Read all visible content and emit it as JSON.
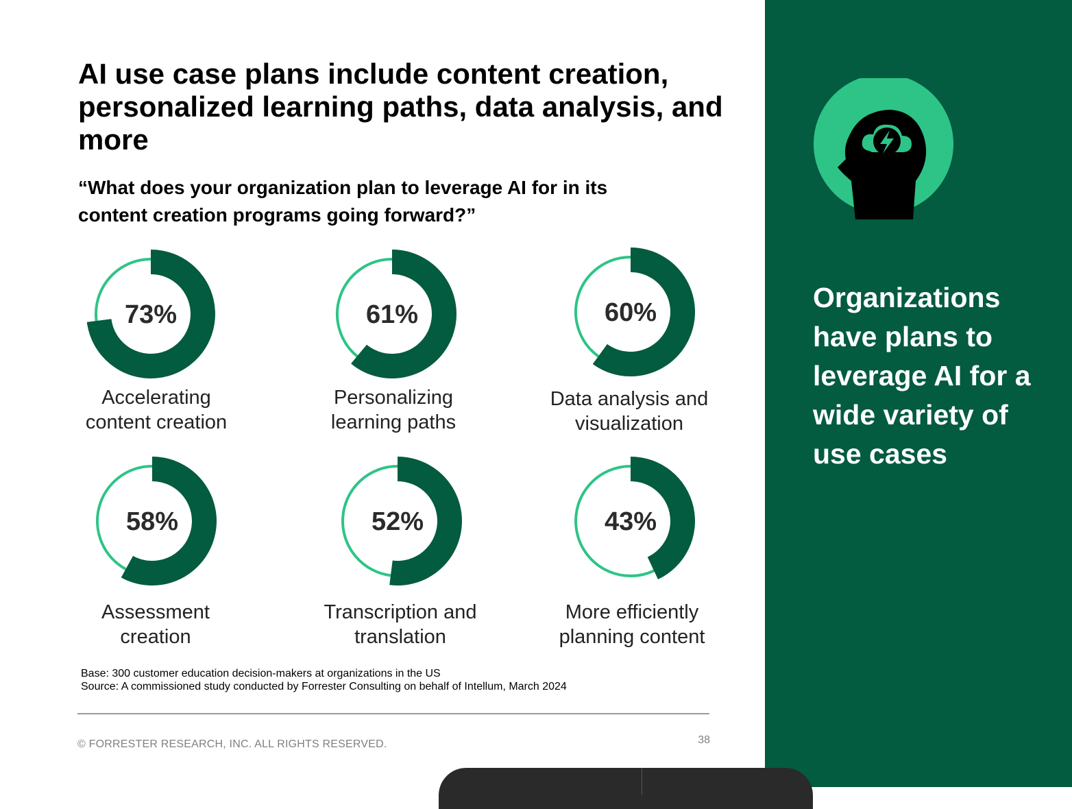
{
  "header": {
    "title": "AI use case plans include content creation, personalized learning paths, data analysis, and more",
    "question": "“What does your organization plan to leverage AI for in its content creation programs going forward?”"
  },
  "chart_data": {
    "type": "donut",
    "title": "“What does your organization plan to leverage AI for in its content creation programs going forward?”",
    "unit": "%",
    "categories": [
      "Accelerating content creation",
      "Personalizing learning paths",
      "Data analysis and visualization",
      "Assessment creation",
      "Transcription and translation",
      "More efficiently planning content"
    ],
    "values": [
      73,
      61,
      60,
      58,
      52,
      43
    ],
    "value_labels": [
      "73%",
      "61%",
      "60%",
      "58%",
      "52%",
      "43%"
    ],
    "label_lines": [
      [
        "Accelerating",
        "content creation"
      ],
      [
        "Personalizing",
        "learning paths"
      ],
      [
        "Data analysis and",
        "visualization"
      ],
      [
        "Assessment",
        "creation"
      ],
      [
        "Transcription and",
        "translation"
      ],
      [
        "More efficiently",
        "planning content"
      ]
    ]
  },
  "footer": {
    "base": "Base: 300 customer education decision-makers at organizations in the US",
    "source": "Source: A commissioned study conducted by Forrester Consulting on behalf of Intellum, March 2024",
    "copyright": "© FORRESTER RESEARCH, INC. ALL RIGHTS RESERVED.",
    "page_number": "38"
  },
  "sidebar": {
    "statement": "Organizations have plans to leverage AI for a wide variety of use cases",
    "icon": "head-with-lightning-cloud-icon"
  },
  "colors": {
    "dark_green": "#035b40",
    "light_green": "#2ec487",
    "text": "#222222"
  }
}
